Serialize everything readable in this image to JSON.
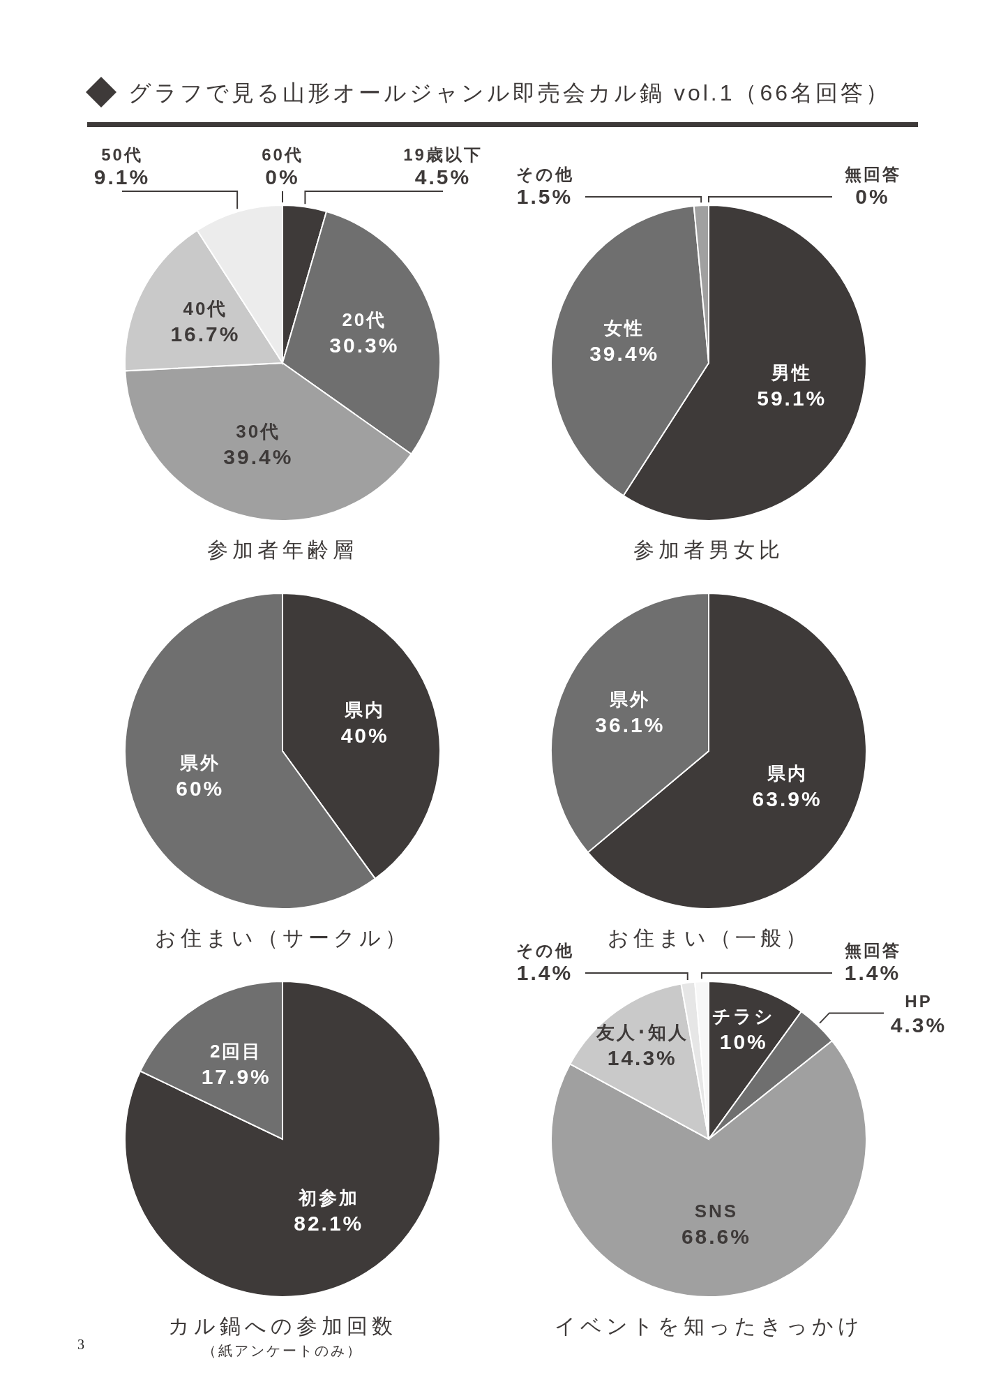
{
  "chart_data": [
    {
      "type": "other",
      "title": "グラフで見る山形オールジャンル即売会カル鍋 vol.1（66名回答）",
      "annotations": [
        "3"
      ]
    },
    {
      "type": "pie",
      "title": "参加者年齢層",
      "categories": [
        "19歳以下",
        "20代",
        "30代",
        "40代",
        "50代",
        "60代"
      ],
      "values": [
        4.5,
        30.3,
        39.4,
        16.7,
        9.1,
        0
      ],
      "colors": [
        "#3e3a39",
        "#6f6f6f",
        "#a0a0a0",
        "#c9c9c9",
        "#ececec",
        "#3e3a39"
      ],
      "value_labels": [
        "4.5%",
        "30.3%",
        "39.4%",
        "16.7%",
        "9.1%",
        "0%"
      ]
    },
    {
      "type": "pie",
      "title": "参加者男女比",
      "categories": [
        "男性",
        "女性",
        "その他",
        "無回答"
      ],
      "values": [
        59.1,
        39.4,
        1.5,
        0
      ],
      "colors": [
        "#3e3a39",
        "#6f6f6f",
        "#a0a0a0",
        "#c9c9c9"
      ],
      "value_labels": [
        "59.1%",
        "39.4%",
        "1.5%",
        "0%"
      ]
    },
    {
      "type": "pie",
      "title": "お住まい（サークル）",
      "categories": [
        "県内",
        "県外"
      ],
      "values": [
        40,
        60
      ],
      "colors": [
        "#3e3a39",
        "#6f6f6f"
      ],
      "value_labels": [
        "40%",
        "60%"
      ]
    },
    {
      "type": "pie",
      "title": "お住まい（一般）",
      "categories": [
        "県内",
        "県外"
      ],
      "values": [
        63.9,
        36.1
      ],
      "colors": [
        "#3e3a39",
        "#6f6f6f"
      ],
      "value_labels": [
        "63.9%",
        "36.1%"
      ]
    },
    {
      "type": "pie",
      "title": "カル鍋への参加回数",
      "subtitle": "（紙アンケートのみ）",
      "categories": [
        "初参加",
        "2回目"
      ],
      "values": [
        82.1,
        17.9
      ],
      "colors": [
        "#3e3a39",
        "#6f6f6f"
      ],
      "value_labels": [
        "82.1%",
        "17.9%"
      ]
    },
    {
      "type": "pie",
      "title": "イベントを知ったきっかけ",
      "categories": [
        "チラシ",
        "HP",
        "SNS",
        "友人･知人",
        "その他",
        "無回答"
      ],
      "values": [
        10,
        4.3,
        68.6,
        14.3,
        1.4,
        1.4
      ],
      "colors": [
        "#3e3a39",
        "#6f6f6f",
        "#a0a0a0",
        "#c9c9c9",
        "#e6e6e6",
        "#f7f7f7"
      ],
      "value_labels": [
        "10%",
        "4.3%",
        "68.6%",
        "14.3%",
        "1.4%",
        "1.4%"
      ]
    }
  ]
}
